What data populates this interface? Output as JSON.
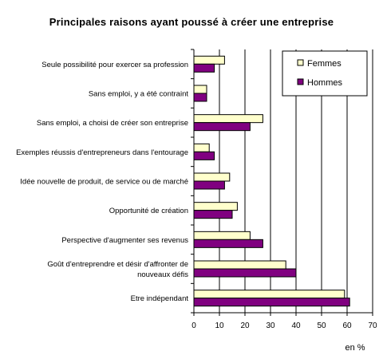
{
  "chart_data": {
    "type": "bar",
    "orientation": "horizontal",
    "title": "Principales raisons ayant poussé à créer une entreprise",
    "xlabel": "en %",
    "xlim": [
      0,
      70
    ],
    "xticks": [
      0,
      10,
      20,
      30,
      40,
      50,
      60,
      70
    ],
    "grid": "vertical",
    "legend_position": "top-right",
    "categories": [
      [
        "Seule possibilité pour exercer sa profession"
      ],
      [
        "Sans emploi, y a été contraint"
      ],
      [
        "Sans emploi, a choisi de créer son entreprise"
      ],
      [
        "Exemples réussis d'entrepreneurs dans l'entourage"
      ],
      [
        "Idée nouvelle de produit, de service ou de marché"
      ],
      [
        "Opportunité de création"
      ],
      [
        "Perspective d'augmenter ses revenus"
      ],
      [
        "Goût d'entreprendre et désir d'affronter de",
        "nouveaux défis"
      ],
      [
        "Etre indépendant"
      ]
    ],
    "series": [
      {
        "name": "Femmes",
        "color": "#ffffcc",
        "values": [
          12,
          5,
          27,
          6,
          14,
          17,
          22,
          36,
          59
        ]
      },
      {
        "name": "Hommes",
        "color": "#800080",
        "values": [
          8,
          5,
          22,
          8,
          12,
          15,
          27,
          40,
          61
        ]
      }
    ]
  }
}
